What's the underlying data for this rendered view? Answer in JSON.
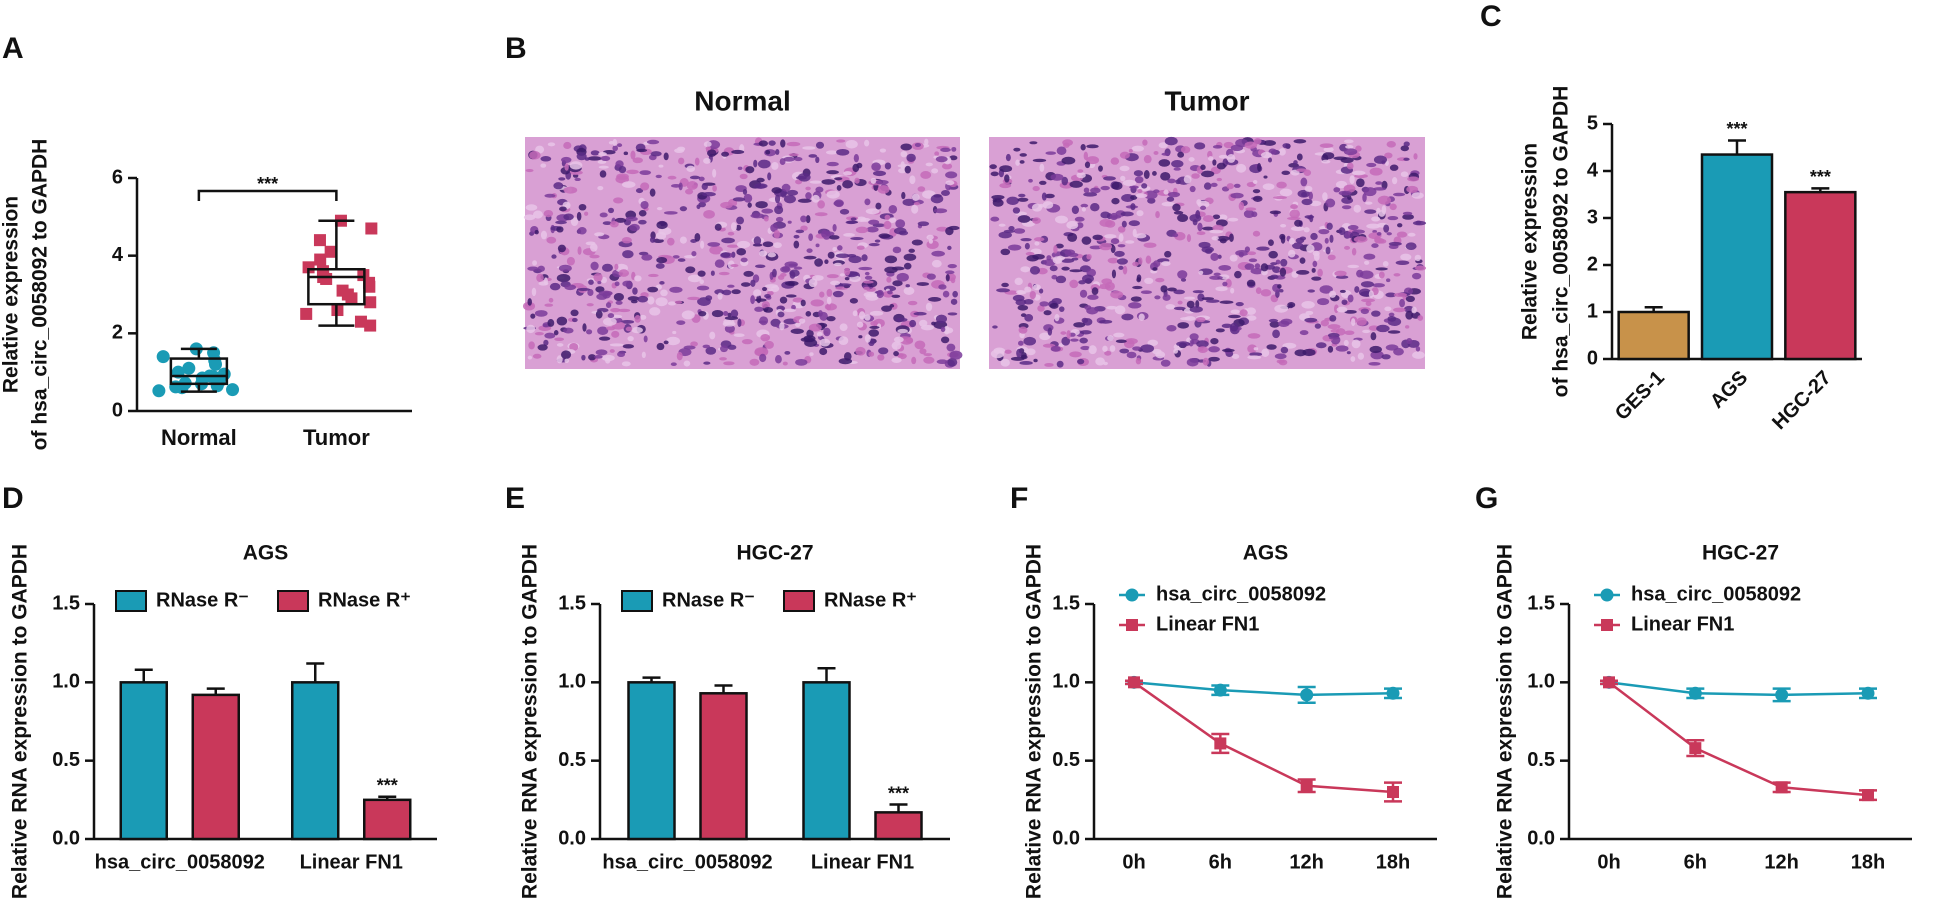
{
  "chart_data": [
    {
      "type": "box",
      "panel": "A",
      "ylabel": [
        "Relative expression",
        "of hsa_circ_0058092 to GAPDH"
      ],
      "categories": [
        "Normal",
        "Tumor"
      ],
      "significance": "***",
      "boxes": [
        {
          "min": 0.5,
          "q1": 0.7,
          "median": 0.9,
          "q3": 1.35,
          "max": 1.6,
          "color": "#1a9bb5",
          "marker": "circle",
          "points": [
            0.52,
            0.55,
            0.6,
            0.62,
            0.65,
            0.7,
            0.72,
            0.75,
            0.8,
            0.85,
            0.88,
            0.9,
            0.95,
            1.0,
            1.1,
            1.2,
            1.3,
            1.4,
            1.5,
            1.6
          ]
        },
        {
          "min": 2.2,
          "q1": 2.75,
          "median": 3.45,
          "q3": 3.65,
          "max": 4.9,
          "color": "#c9385a",
          "marker": "square",
          "points": [
            2.2,
            2.3,
            2.5,
            2.6,
            2.8,
            2.9,
            3.0,
            3.1,
            3.2,
            3.3,
            3.4,
            3.45,
            3.5,
            3.6,
            3.7,
            3.9,
            4.1,
            4.4,
            4.7,
            4.9
          ]
        }
      ],
      "ylim": [
        0,
        6
      ],
      "yticks": [
        0,
        2,
        4,
        6
      ]
    },
    {
      "type": "image",
      "panel": "B",
      "categories": [
        "Normal",
        "Tumor"
      ]
    },
    {
      "type": "bar",
      "panel": "C",
      "ylabel": [
        "Relative expression",
        "of hsa_circ_0058092 to GAPDH"
      ],
      "categories": [
        "GES-1",
        "AGS",
        "HGC-27"
      ],
      "values": [
        1.0,
        4.35,
        3.55
      ],
      "errors": [
        0.1,
        0.3,
        0.08
      ],
      "annotations": [
        null,
        "***",
        "***"
      ],
      "colors": [
        "#c8924a",
        "#1a9bb5",
        "#c9385a"
      ],
      "ylim": [
        0,
        5
      ],
      "yticks": [
        0,
        1,
        2,
        3,
        4,
        5
      ]
    },
    {
      "type": "bar",
      "panel": "D",
      "title": "AGS",
      "ylabel": "Relative RNA expression to GAPDH",
      "categories": [
        "hsa_circ_0058092",
        "Linear FN1"
      ],
      "series": [
        {
          "name": "RNase R⁻",
          "color": "#1a9bb5",
          "values": [
            1.0,
            1.0
          ],
          "errors": [
            0.08,
            0.12
          ],
          "annotations": [
            null,
            null
          ]
        },
        {
          "name": "RNase R⁺",
          "color": "#c9385a",
          "values": [
            0.92,
            0.25
          ],
          "errors": [
            0.04,
            0.02
          ],
          "annotations": [
            null,
            "***"
          ]
        }
      ],
      "ylim": [
        0,
        1.5
      ],
      "yticks": [
        {
          "value": 0,
          "label": "0.0"
        },
        0.5,
        {
          "value": 1,
          "label": "1.0"
        },
        1.5
      ]
    },
    {
      "type": "bar",
      "panel": "E",
      "title": "HGC-27",
      "ylabel": "Relative RNA expression to GAPDH",
      "categories": [
        "hsa_circ_0058092",
        "Linear FN1"
      ],
      "series": [
        {
          "name": "RNase R⁻",
          "color": "#1a9bb5",
          "values": [
            1.0,
            1.0
          ],
          "errors": [
            0.03,
            0.09
          ],
          "annotations": [
            null,
            null
          ]
        },
        {
          "name": "RNase R⁺",
          "color": "#c9385a",
          "values": [
            0.93,
            0.17
          ],
          "errors": [
            0.05,
            0.05
          ],
          "annotations": [
            null,
            "***"
          ]
        }
      ],
      "ylim": [
        0,
        1.5
      ],
      "yticks": [
        {
          "value": 0,
          "label": "0.0"
        },
        0.5,
        {
          "value": 1,
          "label": "1.0"
        },
        1.5
      ]
    },
    {
      "type": "line",
      "panel": "F",
      "title": "AGS",
      "ylabel": "Relative RNA expression to GAPDH",
      "categories": [
        "0h",
        "6h",
        "12h",
        "18h"
      ],
      "series": [
        {
          "name": "hsa_circ_0058092",
          "color": "#1a9bb5",
          "marker": "circle",
          "values": [
            1.0,
            0.95,
            0.92,
            0.93
          ],
          "errors": [
            0.01,
            0.03,
            0.05,
            0.03
          ]
        },
        {
          "name": "Linear FN1",
          "color": "#c9385a",
          "marker": "square",
          "values": [
            1.0,
            0.61,
            0.34,
            0.3
          ],
          "errors": [
            0.01,
            0.06,
            0.04,
            0.06
          ]
        }
      ],
      "ylim": [
        0,
        1.5
      ],
      "yticks": [
        {
          "value": 0,
          "label": "0.0"
        },
        0.5,
        {
          "value": 1,
          "label": "1.0"
        },
        1.5
      ]
    },
    {
      "type": "line",
      "panel": "G",
      "title": "HGC-27",
      "ylabel": "Relative RNA expression to GAPDH",
      "categories": [
        "0h",
        "6h",
        "12h",
        "18h"
      ],
      "series": [
        {
          "name": "hsa_circ_0058092",
          "color": "#1a9bb5",
          "marker": "circle",
          "values": [
            1.0,
            0.93,
            0.92,
            0.93
          ],
          "errors": [
            0.01,
            0.03,
            0.04,
            0.03
          ]
        },
        {
          "name": "Linear FN1",
          "color": "#c9385a",
          "marker": "square",
          "values": [
            1.0,
            0.58,
            0.33,
            0.28
          ],
          "errors": [
            0.01,
            0.05,
            0.03,
            0.03
          ]
        }
      ],
      "ylim": [
        0,
        1.5
      ],
      "yticks": [
        {
          "value": 0,
          "label": "0.0"
        },
        0.5,
        {
          "value": 1,
          "label": "1.0"
        },
        1.5
      ]
    }
  ]
}
